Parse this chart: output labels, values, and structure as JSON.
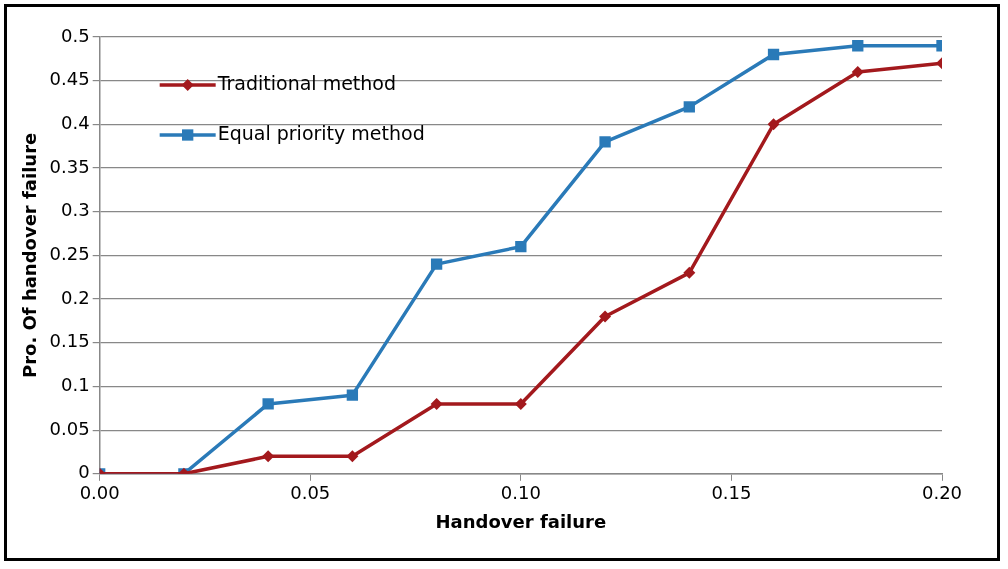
{
  "chart_data": {
    "type": "line",
    "xlabel": "Handover failure",
    "ylabel": "Pro. Of handover failure",
    "x": [
      0,
      0.02,
      0.04,
      0.06,
      0.08,
      0.1,
      0.12,
      0.14,
      0.16,
      0.18,
      0.2
    ],
    "series": [
      {
        "name": "Traditional method",
        "color": "#a3191d",
        "marker": "diamond",
        "values": [
          0,
          0,
          0.02,
          0.02,
          0.08,
          0.08,
          0.18,
          0.23,
          0.4,
          0.46,
          0.47
        ]
      },
      {
        "name": "Equal priority method",
        "color": "#2a7ab8",
        "marker": "square",
        "values": [
          0,
          0,
          0.08,
          0.09,
          0.24,
          0.26,
          0.38,
          0.42,
          0.48,
          0.49,
          0.49
        ]
      }
    ],
    "xlim": [
      0,
      0.2
    ],
    "xticks": [
      {
        "value": 0,
        "label": "0.00"
      },
      {
        "value": 0.05,
        "label": "0.05"
      },
      {
        "value": 0.1,
        "label": "0.10"
      },
      {
        "value": 0.15,
        "label": "0.15"
      },
      {
        "value": 0.2,
        "label": "0.20"
      }
    ],
    "ylim": [
      0,
      0.5
    ],
    "yticks": [
      0,
      0.05,
      0.1,
      0.15,
      0.2,
      0.25,
      0.3,
      0.35,
      0.4,
      0.45,
      0.5
    ],
    "grid": "y",
    "legend": "top left",
    "line_style": "solid"
  }
}
